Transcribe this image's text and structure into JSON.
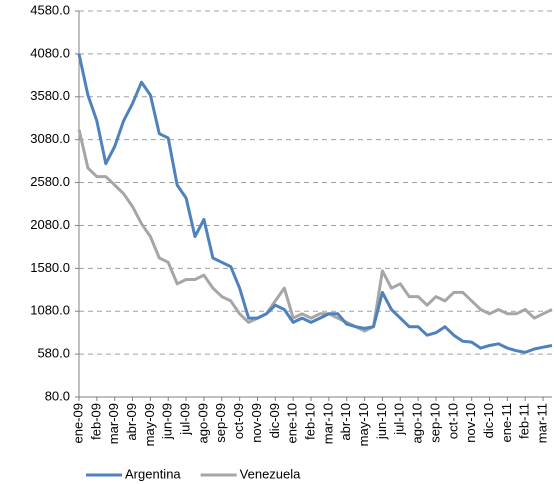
{
  "chart_data": {
    "type": "line",
    "categories": [
      "ene-09",
      null,
      "feb-09",
      null,
      "mar-09",
      null,
      "abr-09",
      null,
      "may-09",
      null,
      "jun-09",
      null,
      "jul-09",
      null,
      "ago-09",
      null,
      "sep-09",
      null,
      "oct-09",
      null,
      "nov-09",
      null,
      "dic-09",
      null,
      "ene-10",
      null,
      "feb-10",
      null,
      "mar-10",
      null,
      "abr-10",
      null,
      "may-10",
      null,
      "jun-10",
      null,
      "jul-10",
      null,
      "ago-10",
      null,
      "sep-10",
      null,
      "oct-10",
      null,
      "nov-10",
      null,
      "dic-10",
      null,
      "ene-11",
      null,
      "feb-11",
      null,
      "mar-11",
      null
    ],
    "series": [
      {
        "name": "Argentina",
        "color": "#4f81bd",
        "values": [
          4080,
          3600,
          3300,
          2800,
          3000,
          3300,
          3500,
          3750,
          3600,
          3150,
          3100,
          2550,
          2400,
          1950,
          2150,
          1700,
          1650,
          1600,
          1350,
          1000,
          1000,
          1050,
          1150,
          1100,
          950,
          1000,
          950,
          1000,
          1050,
          1050,
          930,
          900,
          880,
          900,
          1300,
          1100,
          1000,
          900,
          900,
          800,
          830,
          900,
          800,
          730,
          720,
          650,
          680,
          700,
          650,
          620,
          600,
          640,
          660,
          680
        ]
      },
      {
        "name": "Venezuela",
        "color": "#a6a6a6",
        "values": [
          3200,
          2750,
          2650,
          2650,
          2550,
          2450,
          2300,
          2100,
          1950,
          1700,
          1650,
          1400,
          1450,
          1450,
          1500,
          1350,
          1250,
          1200,
          1050,
          950,
          1000,
          1050,
          1200,
          1350,
          1000,
          1050,
          1000,
          1050,
          1050,
          1000,
          950,
          900,
          850,
          900,
          1550,
          1350,
          1400,
          1250,
          1250,
          1150,
          1250,
          1200,
          1300,
          1300,
          1200,
          1100,
          1050,
          1100,
          1050,
          1050,
          1100,
          1000,
          1050,
          1100
        ]
      }
    ],
    "ylim": [
      80,
      4580
    ],
    "yticks": [
      {
        "value": 80,
        "label": "80.0"
      },
      {
        "value": 580,
        "label": "580.0"
      },
      {
        "value": 1080,
        "label": "1080.0"
      },
      {
        "value": 1580,
        "label": "1580.0"
      },
      {
        "value": 2080,
        "label": "2080.0"
      },
      {
        "value": 2580,
        "label": "2580.0"
      },
      {
        "value": 3080,
        "label": "3080.0"
      },
      {
        "value": 3580,
        "label": "3580.0"
      },
      {
        "value": 4080,
        "label": "4080.0"
      },
      {
        "value": 4580,
        "label": "4580.0"
      }
    ],
    "grid": true,
    "legend": "bottom"
  }
}
